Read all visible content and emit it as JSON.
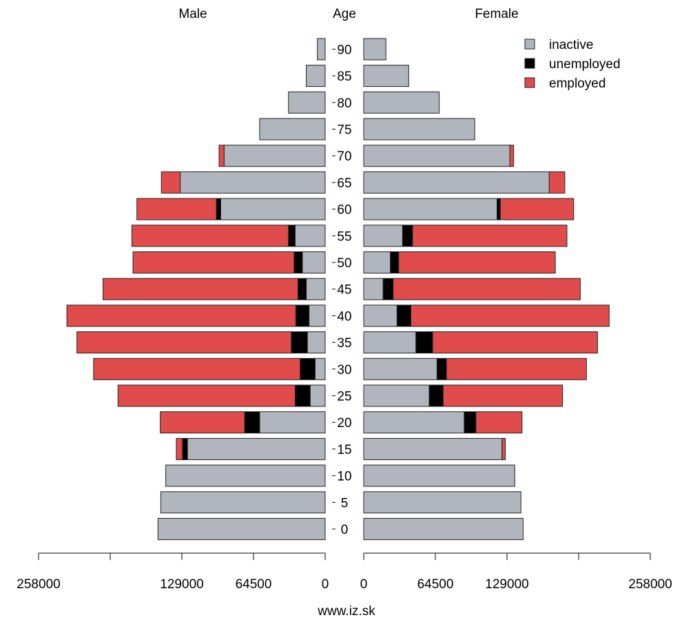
{
  "chart_data": {
    "type": "bar",
    "subtype": "population-pyramid",
    "headers": {
      "left": "Male",
      "center": "Age",
      "right": "Female"
    },
    "categories": [
      "0",
      "5",
      "10",
      "15",
      "20",
      "25",
      "30",
      "35",
      "40",
      "45",
      "50",
      "55",
      "60",
      "65",
      "70",
      "75",
      "80",
      "85",
      "90"
    ],
    "stack_order": [
      "inactive",
      "unemployed",
      "employed"
    ],
    "series": [
      {
        "name": "inactive",
        "color": "#b0b5be",
        "male": [
          150500,
          148000,
          143500,
          124000,
          59000,
          13500,
          9000,
          16000,
          14500,
          17000,
          20500,
          27000,
          94000,
          130500,
          91000,
          59000,
          33000,
          17000,
          7000
        ],
        "female": [
          143500,
          141500,
          136000,
          124500,
          90500,
          59000,
          66000,
          47000,
          30000,
          17500,
          24000,
          35000,
          120000,
          167000,
          131500,
          100000,
          68000,
          40500,
          20000
        ]
      },
      {
        "name": "unemployed",
        "color": "#000000",
        "male": [
          0,
          0,
          0,
          4500,
          13500,
          13500,
          13500,
          14500,
          12000,
          7500,
          7500,
          6000,
          4000,
          0,
          0,
          0,
          0,
          0,
          0
        ],
        "female": [
          0,
          0,
          0,
          0,
          10500,
          12500,
          8500,
          15000,
          12500,
          9000,
          7500,
          9000,
          3000,
          0,
          0,
          0,
          0,
          0,
          0
        ]
      },
      {
        "name": "employed",
        "color": "#e04b4b",
        "male": [
          0,
          0,
          0,
          5500,
          76000,
          159500,
          186000,
          193000,
          206000,
          175500,
          145000,
          141000,
          71500,
          17000,
          4500,
          0,
          0,
          0,
          0
        ],
        "female": [
          0,
          0,
          0,
          3000,
          41500,
          107500,
          126000,
          148500,
          178500,
          168500,
          141000,
          139000,
          66000,
          14000,
          3500,
          0,
          0,
          0,
          0
        ]
      }
    ],
    "axis": {
      "male_ticks": [
        "258000",
        "129000",
        "64500",
        "0"
      ],
      "female_ticks": [
        "0",
        "64500",
        "129000",
        "258000"
      ],
      "range": [
        0,
        258000
      ]
    },
    "legend": {
      "position": "top-right",
      "items": [
        "inactive",
        "unemployed",
        "employed"
      ]
    },
    "footer": "www.iz.sk"
  }
}
